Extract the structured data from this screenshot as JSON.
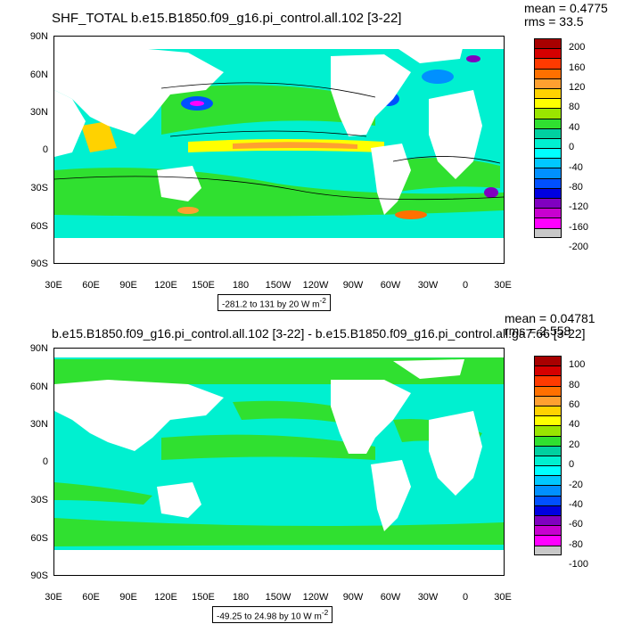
{
  "top": {
    "title": "SHF_TOTAL b.e15.B1850.f09_g16.pi_control.all.102 [3-22]",
    "mean_label": "mean = 0.4775",
    "rms_label": "rms = 33.5",
    "range_label": "-281.2 to 131 by 20  W m",
    "unit_sup": "-2",
    "colorbar": {
      "labels": [
        "200",
        "160",
        "120",
        "80",
        "40",
        "0",
        "-40",
        "-80",
        "-120",
        "-160",
        "-200"
      ],
      "colors": [
        "#a80000",
        "#d50000",
        "#ff3a00",
        "#ff7000",
        "#ffa030",
        "#ffd200",
        "#ffff00",
        "#9ae500",
        "#30e030",
        "#00d0a0",
        "#00f0d0",
        "#00ffff",
        "#00c8ff",
        "#0090ff",
        "#0050ff",
        "#0000e0",
        "#8000c0",
        "#c800d0",
        "#ff00ff",
        "#c8c8c8",
        "#707070"
      ]
    }
  },
  "bottom": {
    "title": "b.e15.B1850.f09_g16.pi_control.all.102 [3-22] - b.e15.B1850.f09_g16.pi_control.all.ga7.66 [3-22]",
    "mean_label": "mean = 0.04781",
    "rms_label": "rms = 2.558",
    "range_label": "-49.25 to 24.98 by 10  W m",
    "unit_sup": "-2",
    "colorbar": {
      "labels": [
        "100",
        "80",
        "60",
        "40",
        "20",
        "0",
        "-20",
        "-40",
        "-60",
        "-80",
        "-100"
      ],
      "colors": [
        "#a80000",
        "#d50000",
        "#ff3a00",
        "#ff7000",
        "#ffa030",
        "#ffd200",
        "#ffff00",
        "#9ae500",
        "#30e030",
        "#00d0a0",
        "#00f0d0",
        "#00ffff",
        "#00c8ff",
        "#0090ff",
        "#0050ff",
        "#0000e0",
        "#8000c0",
        "#c800d0",
        "#ff00ff",
        "#c8c8c8",
        "#707070"
      ]
    }
  },
  "lat_labels": [
    "90N",
    "60N",
    "30N",
    "0",
    "30S",
    "60S",
    "90S"
  ],
  "lon_labels": [
    "30E",
    "60E",
    "90E",
    "120E",
    "150E",
    "180",
    "150W",
    "120W",
    "90W",
    "60W",
    "30W",
    "0",
    "30E"
  ],
  "palette": {
    "ocean_top": "#00f0d0",
    "ocean_top_green": "#30e030",
    "ocean_top_light": "#00ffff",
    "warm_yellow": "#ffff00",
    "warm_orange": "#ffa030",
    "cold_blue": "#0050ff",
    "cold_purple": "#8000c0",
    "ocean_bottom": "#00f0d0",
    "ocean_bottom_green": "#30e030",
    "land": "#ffffff"
  }
}
